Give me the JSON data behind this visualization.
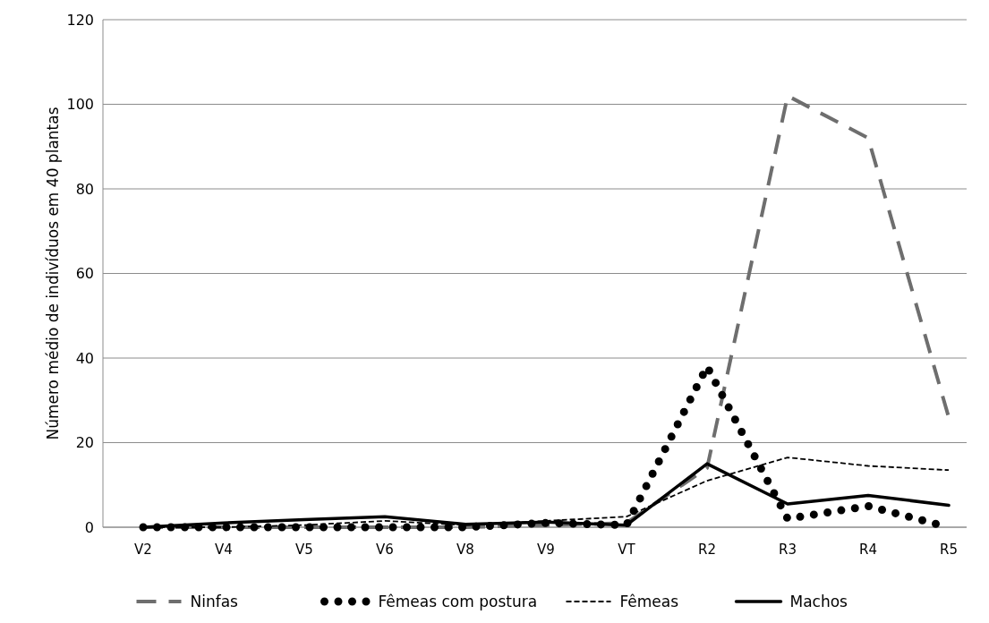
{
  "chart_data": {
    "type": "line",
    "ylabel": "Número médio de indivíduos em 40 plantas",
    "categories": [
      "V2",
      "V4",
      "V5",
      "V6",
      "V8",
      "V9",
      "VT",
      "R2",
      "R3",
      "R4",
      "R5"
    ],
    "ylim": [
      0,
      120
    ],
    "yticks": [
      0,
      20,
      40,
      60,
      80,
      100,
      120
    ],
    "grid": "y",
    "legend": "bottom",
    "marker": "none",
    "series": [
      {
        "name": "Ninfas",
        "color": "#6e6e6e",
        "line_style": "dashed",
        "values": [
          0,
          0,
          0,
          0,
          0,
          0.5,
          1,
          14,
          102,
          92,
          26
        ]
      },
      {
        "name": "Fêmeas com postura",
        "color": "#000000",
        "line_style": "dotted",
        "values": [
          0,
          0,
          0,
          0,
          0,
          1,
          0.5,
          38,
          2,
          5,
          0
        ]
      },
      {
        "name": "Fêmeas",
        "color": "#000000",
        "line_style": "dashed",
        "values": [
          0,
          0,
          0.5,
          1.5,
          0.5,
          1.5,
          2.5,
          11,
          16.5,
          14.5,
          13.5
        ]
      },
      {
        "name": "Machos",
        "color": "#000000",
        "line_style": "solid",
        "values": [
          0,
          1,
          1.8,
          2.5,
          0.7,
          1.2,
          0.5,
          15,
          5.5,
          7.5,
          5.2
        ]
      }
    ]
  }
}
